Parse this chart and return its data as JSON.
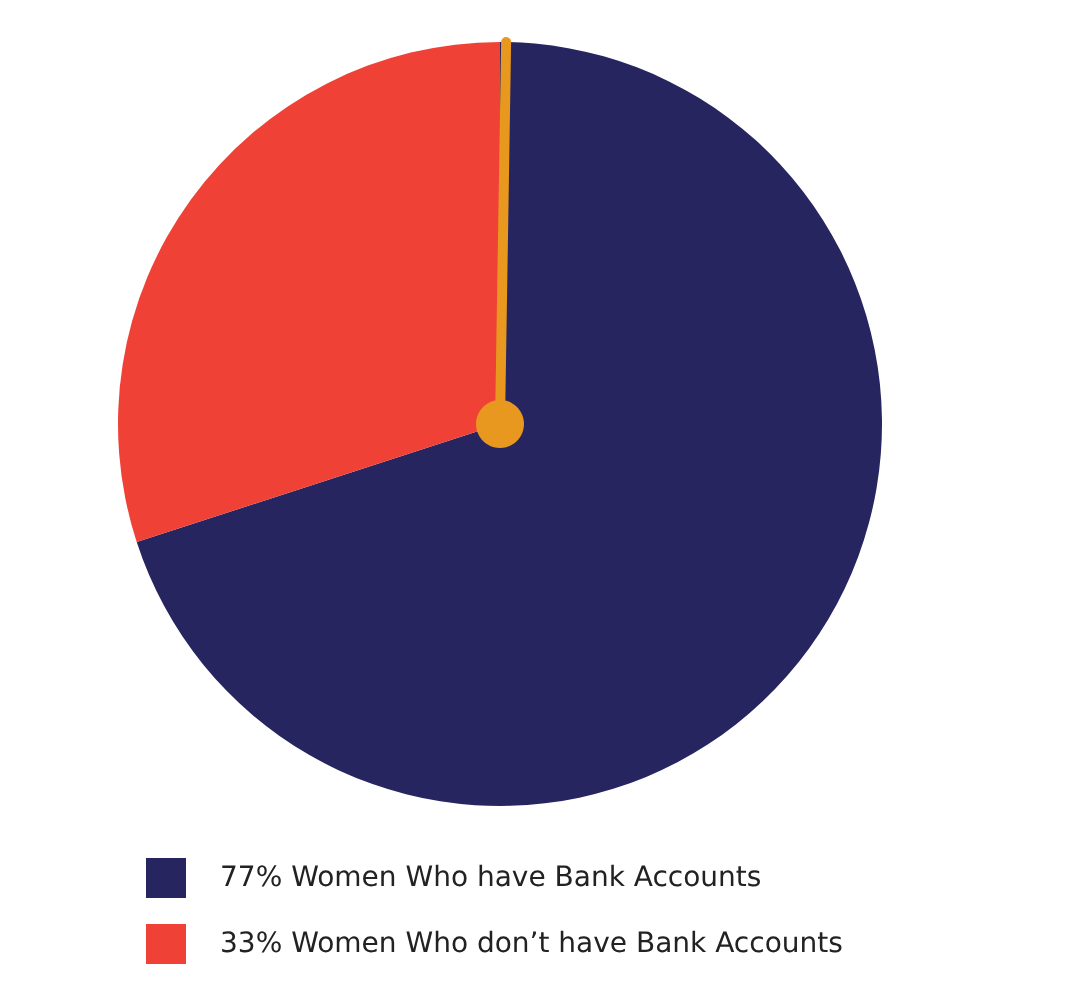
{
  "chart_data": {
    "type": "pie",
    "categories": [
      "77% Women Who have Bank Accounts",
      "33% Women Who don’t have Bank Accounts"
    ],
    "values": [
      77,
      33
    ],
    "colors": [
      "#262560",
      "#ef4136"
    ],
    "legend": "bottom left",
    "needle": "77% Women Who have Bank Accounts"
  }
}
